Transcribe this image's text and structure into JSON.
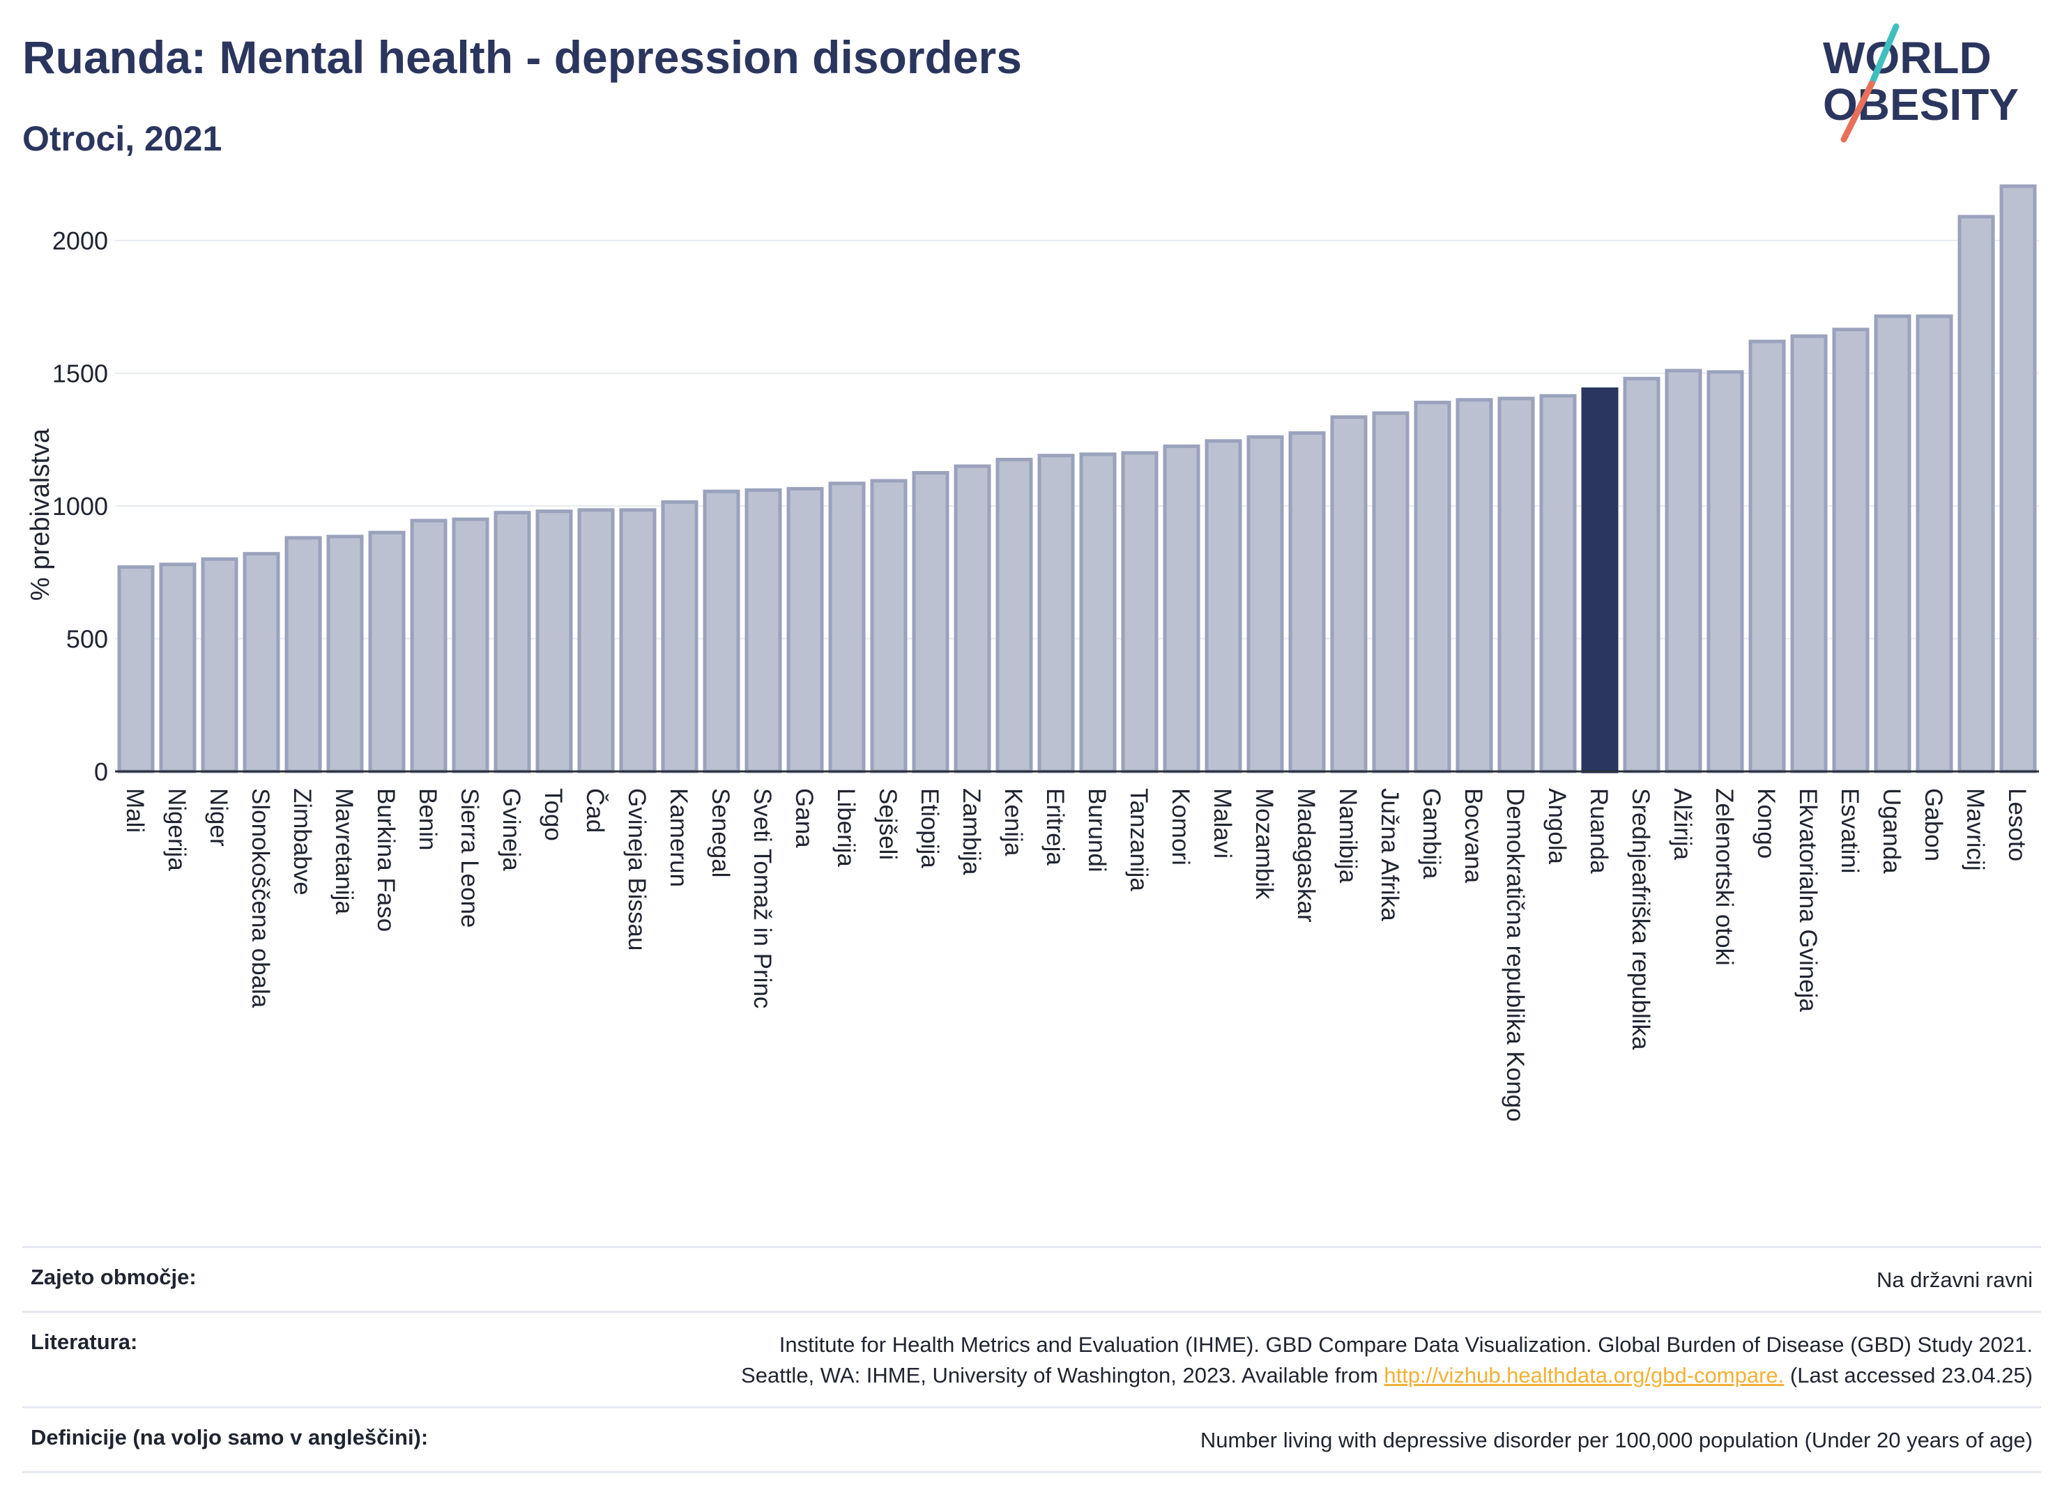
{
  "header": {
    "title": "Ruanda: Mental health - depression disorders",
    "subtitle": "Otroci, 2021"
  },
  "logo": {
    "line1": "WORLD",
    "line2": "OBESITY"
  },
  "colors": {
    "bar": "#bcc1d1",
    "bar_border": "#9aa2bc",
    "highlight": "#2b365e",
    "title": "#2b365e",
    "grid": "#e6e9f2",
    "link": "#f2b135"
  },
  "chart_data": {
    "type": "bar",
    "ylabel": "% prebivalstva",
    "ylim": [
      0,
      2250
    ],
    "yticks": [
      0,
      500,
      1000,
      1500,
      2000
    ],
    "grid": true,
    "highlight": "Ruanda",
    "categories": [
      "Mali",
      "Nigerija",
      "Niger",
      "Slonokoščena obala",
      "Zimbabve",
      "Mavretanija",
      "Burkina Faso",
      "Benin",
      "Sierra Leone",
      "Gvineja",
      "Togo",
      "Čad",
      "Gvineja Bissau",
      "Kamerun",
      "Senegal",
      "Sveti Tomaž in Princ",
      "Gana",
      "Liberija",
      "Sejšeli",
      "Etiopija",
      "Zambija",
      "Kenija",
      "Eritreja",
      "Burundi",
      "Tanzanija",
      "Komori",
      "Malavi",
      "Mozambik",
      "Madagaskar",
      "Namibija",
      "Južna Afrika",
      "Gambija",
      "Bocvana",
      "Demokratična republika Kongo",
      "Angola",
      "Ruanda",
      "Srednjeafriška republika",
      "Alžirija",
      "Zelenortski otoki",
      "Kongo",
      "Ekvatorialna Gvineja",
      "Esvatini",
      "Uganda",
      "Gabon",
      "Mavricij",
      "Lesoto"
    ],
    "values": [
      770,
      780,
      800,
      820,
      880,
      885,
      900,
      945,
      950,
      975,
      980,
      985,
      985,
      1015,
      1055,
      1060,
      1065,
      1085,
      1095,
      1125,
      1150,
      1175,
      1190,
      1195,
      1200,
      1225,
      1245,
      1260,
      1275,
      1335,
      1350,
      1390,
      1400,
      1405,
      1415,
      1440,
      1480,
      1510,
      1505,
      1620,
      1640,
      1665,
      1715,
      1715,
      2090,
      2205
    ]
  },
  "footer": {
    "coverage_label": "Zajeto območje:",
    "coverage_value": "Na državni ravni",
    "literature_label": "Literatura:",
    "literature_line1": "Institute for Health Metrics and Evaluation (IHME). GBD Compare Data Visualization. Global Burden of Disease (GBD) Study 2021.",
    "literature_line2_pre": "Seattle, WA: IHME, University of Washington, 2023. Available from ",
    "literature_link": "http://vizhub.healthdata.org/gbd-compare.",
    "literature_line2_post": " (Last accessed 23.04.25)",
    "definition_label": "Definicije (na voljo samo v angleščini):",
    "definition_value": "Number living with depressive disorder per 100,000 population (Under 20 years of age)"
  }
}
